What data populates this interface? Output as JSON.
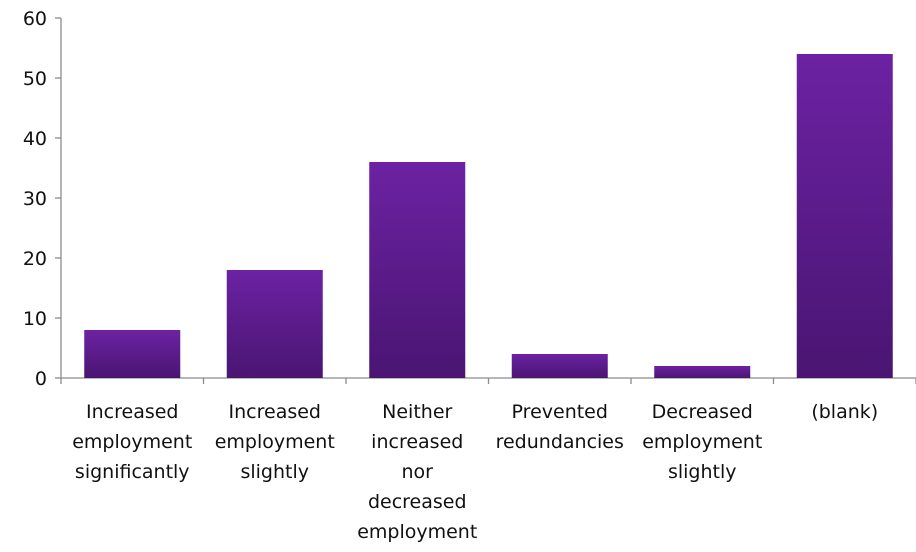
{
  "chart_data": {
    "type": "bar",
    "categories": [
      [
        "Increased",
        "employment",
        "significantly"
      ],
      [
        "Increased",
        "employment",
        "slightly"
      ],
      [
        "Neither",
        "increased",
        "nor",
        "decreased",
        "employment"
      ],
      [
        "Prevented",
        "redundancies"
      ],
      [
        "Decreased",
        "employment",
        "slightly"
      ],
      [
        "(blank)"
      ]
    ],
    "values": [
      8,
      18,
      36,
      4,
      2,
      54
    ],
    "ylim": [
      0,
      60
    ],
    "yticks": [
      0,
      10,
      20,
      30,
      40,
      50,
      60
    ],
    "title": "",
    "xlabel": "",
    "ylabel": "",
    "grid": false,
    "legend": "none",
    "bar_color_top": "#6c22a3",
    "bar_color_bottom": "#4a1572"
  }
}
